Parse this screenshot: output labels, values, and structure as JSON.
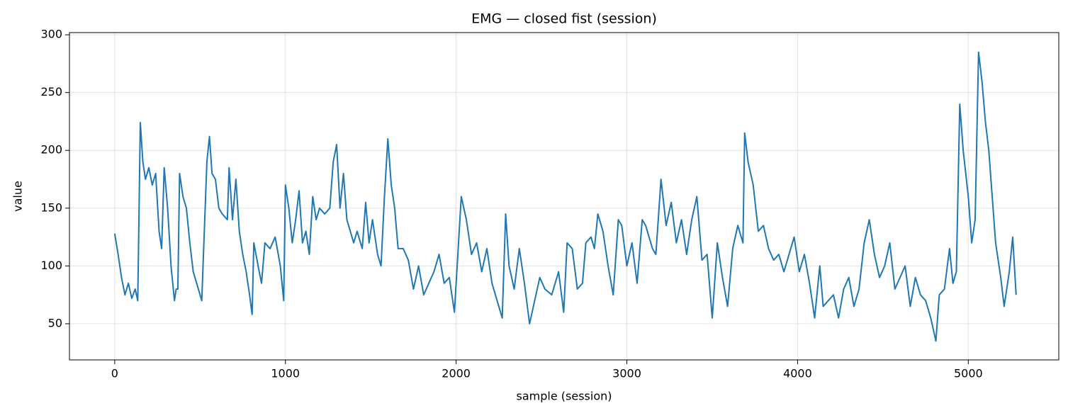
{
  "chart_data": {
    "type": "line",
    "title": "EMG — closed fist (session)",
    "xlabel": "sample (session)",
    "ylabel": "value",
    "x": [
      0,
      20,
      40,
      60,
      80,
      100,
      120,
      135,
      140,
      150,
      165,
      180,
      200,
      220,
      240,
      260,
      275,
      290,
      310,
      330,
      350,
      360,
      370,
      380,
      400,
      420,
      440,
      460,
      480,
      500,
      510,
      520,
      540,
      555,
      570,
      590,
      610,
      630,
      660,
      670,
      690,
      710,
      730,
      750,
      770,
      790,
      805,
      815,
      840,
      860,
      880,
      910,
      940,
      970,
      990,
      1000,
      1020,
      1040,
      1060,
      1080,
      1100,
      1120,
      1140,
      1160,
      1180,
      1200,
      1230,
      1260,
      1280,
      1300,
      1320,
      1340,
      1360,
      1380,
      1400,
      1420,
      1450,
      1470,
      1490,
      1510,
      1540,
      1560,
      1580,
      1600,
      1620,
      1640,
      1660,
      1690,
      1720,
      1750,
      1780,
      1810,
      1840,
      1870,
      1900,
      1930,
      1960,
      1990,
      2030,
      2060,
      2090,
      2120,
      2150,
      2180,
      2210,
      2240,
      2270,
      2290,
      2310,
      2340,
      2370,
      2400,
      2430,
      2460,
      2490,
      2520,
      2560,
      2600,
      2630,
      2650,
      2680,
      2710,
      2740,
      2760,
      2790,
      2810,
      2830,
      2860,
      2890,
      2920,
      2950,
      2970,
      3000,
      3030,
      3060,
      3090,
      3110,
      3150,
      3170,
      3200,
      3230,
      3260,
      3290,
      3320,
      3350,
      3380,
      3410,
      3440,
      3470,
      3500,
      3530,
      3560,
      3590,
      3620,
      3650,
      3680,
      3690,
      3710,
      3740,
      3770,
      3800,
      3830,
      3860,
      3890,
      3920,
      3950,
      3980,
      4010,
      4040,
      4070,
      4100,
      4130,
      4150,
      4180,
      4210,
      4240,
      4270,
      4300,
      4330,
      4360,
      4390,
      4420,
      4450,
      4480,
      4510,
      4540,
      4570,
      4600,
      4630,
      4660,
      4690,
      4720,
      4750,
      4780,
      4810,
      4830,
      4860,
      4890,
      4910,
      4930,
      4950,
      4970,
      5000,
      5020,
      5040,
      5060,
      5080,
      5100,
      5120,
      5140,
      5160,
      5190,
      5210,
      5240,
      5260,
      5280
    ],
    "values": [
      128,
      110,
      90,
      75,
      85,
      72,
      80,
      70,
      120,
      224,
      190,
      175,
      185,
      170,
      180,
      130,
      115,
      185,
      150,
      100,
      70,
      80,
      80,
      180,
      160,
      150,
      120,
      95,
      85,
      75,
      70,
      110,
      190,
      212,
      180,
      175,
      150,
      145,
      140,
      185,
      140,
      175,
      130,
      110,
      95,
      75,
      58,
      120,
      100,
      85,
      120,
      115,
      125,
      100,
      70,
      170,
      150,
      120,
      140,
      165,
      120,
      130,
      110,
      160,
      140,
      150,
      145,
      150,
      190,
      205,
      150,
      180,
      140,
      130,
      120,
      130,
      115,
      155,
      120,
      140,
      110,
      100,
      160,
      210,
      170,
      150,
      115,
      115,
      105,
      80,
      100,
      75,
      85,
      95,
      110,
      85,
      90,
      60,
      160,
      140,
      110,
      120,
      95,
      115,
      85,
      70,
      55,
      145,
      100,
      80,
      115,
      85,
      50,
      70,
      90,
      80,
      75,
      95,
      60,
      120,
      115,
      80,
      85,
      120,
      125,
      115,
      145,
      130,
      100,
      75,
      140,
      135,
      100,
      120,
      85,
      140,
      135,
      115,
      110,
      175,
      135,
      155,
      120,
      140,
      110,
      140,
      160,
      105,
      110,
      55,
      120,
      90,
      65,
      115,
      135,
      120,
      215,
      190,
      170,
      130,
      135,
      115,
      105,
      110,
      95,
      110,
      125,
      95,
      110,
      85,
      55,
      100,
      65,
      70,
      75,
      55,
      80,
      90,
      65,
      80,
      120,
      140,
      110,
      90,
      100,
      120,
      80,
      90,
      100,
      65,
      90,
      75,
      70,
      55,
      35,
      75,
      80,
      115,
      85,
      95,
      240,
      200,
      160,
      120,
      140,
      285,
      260,
      225,
      200,
      160,
      120,
      90,
      65,
      95,
      125,
      75
    ],
    "color": "#1f77b4",
    "xlim": [
      -265,
      5530
    ],
    "ylim": [
      18.7,
      301.9
    ],
    "xticks": [
      0,
      1000,
      2000,
      3000,
      4000,
      5000
    ],
    "yticks": [
      50,
      100,
      150,
      200,
      250,
      300
    ],
    "grid": true
  }
}
